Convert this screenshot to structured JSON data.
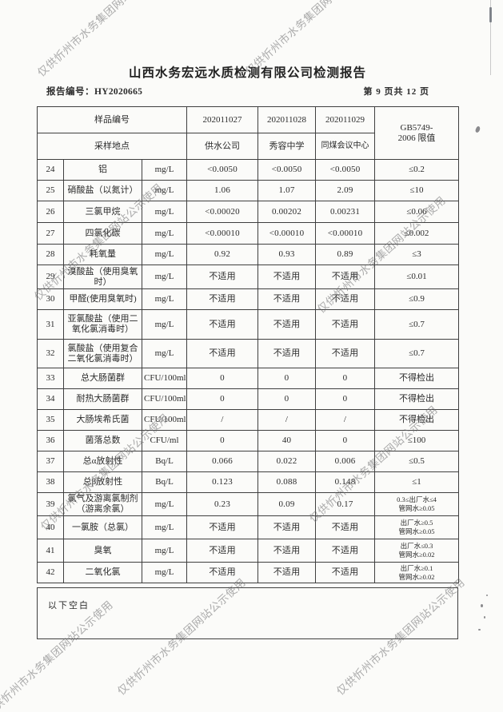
{
  "watermark": {
    "text": "仅供忻州市水务集团网站公示使用"
  },
  "header": {
    "title": "山西水务宏远水质检测有限公司检测报告",
    "report_no_label": "报告编号：",
    "report_no": "HY2020665",
    "page_info": "第 9 页共 12 页"
  },
  "table": {
    "head": {
      "sample_id_label": "样品编号",
      "location_label": "采样地点",
      "sample_ids": [
        "202011027",
        "202011028",
        "202011029"
      ],
      "locations": [
        "供水公司",
        "秀容中学",
        "同煤会议中心"
      ],
      "limit_header": "GB5749-\n2006 限值"
    },
    "rows": [
      {
        "no": "24",
        "name": "铝",
        "unit": "mg/L",
        "values": [
          "<0.0050",
          "<0.0050",
          "<0.0050"
        ],
        "limit": "≤0.2"
      },
      {
        "no": "25",
        "name": "硝酸盐（以氮计）",
        "unit": "mg/L",
        "values": [
          "1.06",
          "1.07",
          "2.09"
        ],
        "limit": "≤10"
      },
      {
        "no": "26",
        "name": "三氯甲烷",
        "unit": "mg/L",
        "values": [
          "<0.00020",
          "0.00202",
          "0.00231"
        ],
        "limit": "≤0.06"
      },
      {
        "no": "27",
        "name": "四氯化碳",
        "unit": "mg/L",
        "values": [
          "<0.00010",
          "<0.00010",
          "<0.00010"
        ],
        "limit": "≤0.002"
      },
      {
        "no": "28",
        "name": "耗氧量",
        "unit": "mg/L",
        "values": [
          "0.92",
          "0.93",
          "0.89"
        ],
        "limit": "≤3"
      },
      {
        "no": "29",
        "name": "溴酸盐（使用臭氧\n时）",
        "unit": "mg/L",
        "values": [
          "不适用",
          "不适用",
          "不适用"
        ],
        "limit": "≤0.01"
      },
      {
        "no": "30",
        "name": "甲醛(使用臭氧时)",
        "unit": "mg/L",
        "values": [
          "不适用",
          "不适用",
          "不适用"
        ],
        "limit": "≤0.9"
      },
      {
        "no": "31",
        "name": "亚氯酸盐（使用二\n氧化氯消毒时）",
        "unit": "mg/L",
        "values": [
          "不适用",
          "不适用",
          "不适用"
        ],
        "limit": "≤0.7"
      },
      {
        "no": "32",
        "name": "氯酸盐（使用复合\n二氧化氯消毒时）",
        "unit": "mg/L",
        "values": [
          "不适用",
          "不适用",
          "不适用"
        ],
        "limit": "≤0.7"
      },
      {
        "no": "33",
        "name": "总大肠菌群",
        "unit": "CFU/100ml",
        "values": [
          "0",
          "0",
          "0"
        ],
        "limit": "不得检出"
      },
      {
        "no": "34",
        "name": "耐热大肠菌群",
        "unit": "CFU/100ml",
        "values": [
          "0",
          "0",
          "0"
        ],
        "limit": "不得检出"
      },
      {
        "no": "35",
        "name": "大肠埃希氏菌",
        "unit": "CFU/100ml",
        "values": [
          "/",
          "/",
          "/"
        ],
        "limit": "不得检出"
      },
      {
        "no": "36",
        "name": "菌落总数",
        "unit": "CFU/ml",
        "values": [
          "0",
          "40",
          "0"
        ],
        "limit": "≤100"
      },
      {
        "no": "37",
        "name": "总α放射性",
        "unit": "Bq/L",
        "values": [
          "0.066",
          "0.022",
          "0.006"
        ],
        "limit": "≤0.5"
      },
      {
        "no": "38",
        "name": "总β放射性",
        "unit": "Bq/L",
        "values": [
          "0.123",
          "0.088",
          "0.148"
        ],
        "limit": "≤1"
      },
      {
        "no": "39",
        "name": "氯气及游离氯制剂\n（游离余氯）",
        "unit": "mg/L",
        "values": [
          "0.23",
          "0.09",
          "0.17"
        ],
        "limit": "0.3≤出厂水≤4\n管网水≥0.05"
      },
      {
        "no": "40",
        "name": "一氯胺（总氯）",
        "unit": "mg/L",
        "values": [
          "不适用",
          "不适用",
          "不适用"
        ],
        "limit": "出厂水≥0.5\n管网水≥0.05"
      },
      {
        "no": "41",
        "name": "臭氧",
        "unit": "mg/L",
        "values": [
          "不适用",
          "不适用",
          "不适用"
        ],
        "limit": "出厂水≤0.3\n管网水≥0.02"
      },
      {
        "no": "42",
        "name": "二氧化氯",
        "unit": "mg/L",
        "values": [
          "不适用",
          "不适用",
          "不适用"
        ],
        "limit": "出厂水≥0.1\n管网水≥0.02"
      }
    ]
  },
  "footer": {
    "blank_note": "以下空白"
  }
}
